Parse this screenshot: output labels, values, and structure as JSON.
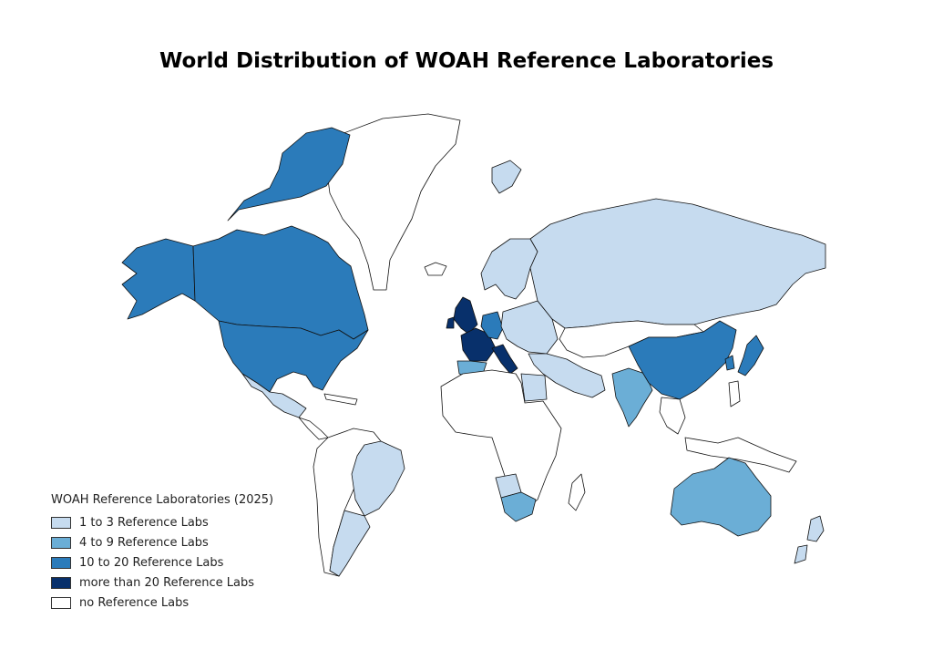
{
  "title": "World Distribution of WOAH Reference Laboratories",
  "legend": {
    "title": "WOAH Reference Laboratories (2025)",
    "items": [
      {
        "label": "1 to 3 Reference Labs",
        "color": "#c6dbef"
      },
      {
        "label": "4 to 9 Reference Labs",
        "color": "#6baed6"
      },
      {
        "label": "10 to 20 Reference Labs",
        "color": "#2b7bba"
      },
      {
        "label": "more than 20 Reference Labs",
        "color": "#08306b"
      },
      {
        "label": "no Reference Labs",
        "color": "#ffffff"
      }
    ]
  },
  "styles": {
    "border_color": "#111111",
    "no_data_color": "#ffffff"
  },
  "regions": [
    {
      "name": "greenland",
      "class": 0
    },
    {
      "name": "canada",
      "class": 3
    },
    {
      "name": "united-states",
      "class": 3
    },
    {
      "name": "alaska",
      "class": 3
    },
    {
      "name": "mexico",
      "class": 1
    },
    {
      "name": "central-america",
      "class": 0
    },
    {
      "name": "brazil",
      "class": 1
    },
    {
      "name": "argentina",
      "class": 1
    },
    {
      "name": "rest-of-south-america",
      "class": 0
    },
    {
      "name": "scandinavia",
      "class": 1
    },
    {
      "name": "united-kingdom",
      "class": 4
    },
    {
      "name": "france",
      "class": 4
    },
    {
      "name": "spain",
      "class": 2
    },
    {
      "name": "germany",
      "class": 3
    },
    {
      "name": "italy",
      "class": 4
    },
    {
      "name": "eastern-europe",
      "class": 1
    },
    {
      "name": "russia",
      "class": 1
    },
    {
      "name": "central-asia",
      "class": 0
    },
    {
      "name": "middle-east",
      "class": 1
    },
    {
      "name": "india",
      "class": 2
    },
    {
      "name": "china",
      "class": 3
    },
    {
      "name": "japan",
      "class": 3
    },
    {
      "name": "southeast-asia",
      "class": 0
    },
    {
      "name": "africa",
      "class": 0
    },
    {
      "name": "egypt",
      "class": 1
    },
    {
      "name": "south-africa",
      "class": 2
    },
    {
      "name": "southern-africa-neighbour",
      "class": 1
    },
    {
      "name": "australia",
      "class": 2
    },
    {
      "name": "new-zealand",
      "class": 1
    },
    {
      "name": "iceland",
      "class": 0
    },
    {
      "name": "svalbard",
      "class": 1
    }
  ]
}
